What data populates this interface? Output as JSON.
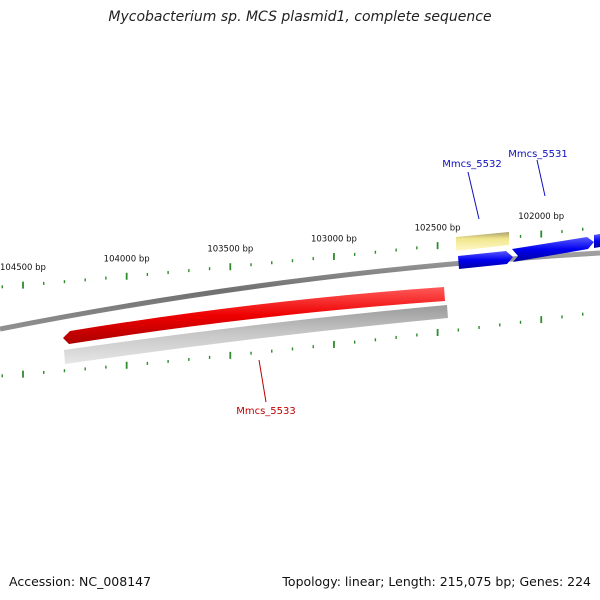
{
  "title": "Mycobacterium sp. MCS plasmid1, complete sequence",
  "footer": {
    "accession": "Accession: NC_008147",
    "summary": "Topology: linear; Length: 215,075 bp; Genes: 224"
  },
  "ticks": {
    "labels": [
      {
        "bp": 104500,
        "text": "104500 bp"
      },
      {
        "bp": 104000,
        "text": "104000 bp"
      },
      {
        "bp": 103500,
        "text": "103500 bp"
      },
      {
        "bp": 103000,
        "text": "103000 bp"
      },
      {
        "bp": 102500,
        "text": "102500 bp"
      },
      {
        "bp": 102000,
        "text": "102000 bp"
      }
    ],
    "minor_step_bp": 100,
    "color": "#2e8b2e"
  },
  "genes": [
    {
      "name": "Mmcs_5531",
      "strand": "forward",
      "color": "#0000dd",
      "label_color": "#1010c0"
    },
    {
      "name": "Mmcs_5532",
      "strand": "forward",
      "color": "#0000dd",
      "label_color": "#1010c0"
    },
    {
      "name": "Mmcs_5533",
      "strand": "reverse",
      "color": "#ee0000",
      "label_color": "#c00000"
    }
  ],
  "colors": {
    "backbone": "#808080",
    "forward_gene": "#0000ee",
    "reverse_gene": "#ee0000",
    "feature_shadow": "#c0c0c0",
    "feature_highlight": "#f0e68c"
  }
}
